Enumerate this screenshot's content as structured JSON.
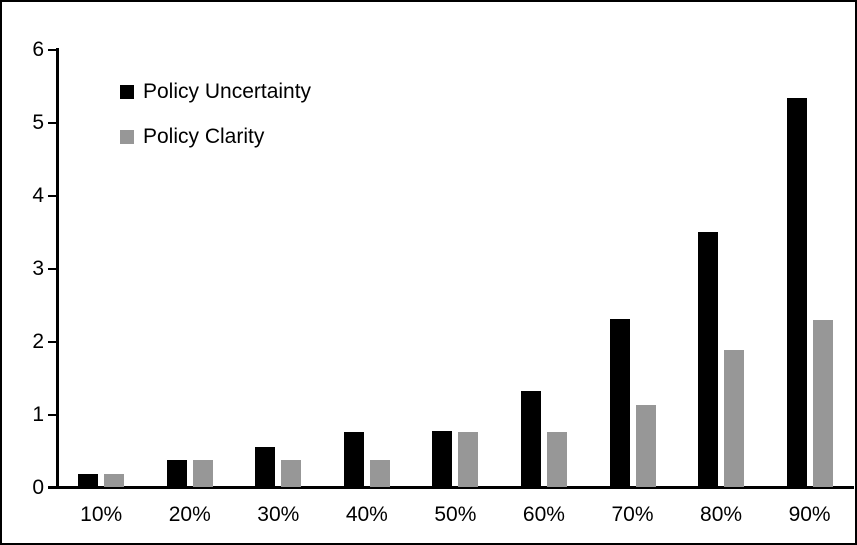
{
  "chart_data": {
    "type": "bar",
    "title": "",
    "xlabel": "",
    "ylabel": "",
    "categories": [
      "10%",
      "20%",
      "30%",
      "40%",
      "50%",
      "60%",
      "70%",
      "80%",
      "90%"
    ],
    "series": [
      {
        "name": "Policy Uncertainty",
        "color": "#000000",
        "values": [
          0.19,
          0.38,
          0.55,
          0.76,
          0.77,
          1.32,
          2.31,
          3.5,
          5.33
        ]
      },
      {
        "name": "Policy Clarity",
        "color": "#979797",
        "values": [
          0.19,
          0.37,
          0.38,
          0.38,
          0.76,
          0.76,
          1.13,
          1.88,
          2.3
        ]
      }
    ],
    "ylim": [
      0,
      6
    ],
    "yticks": [
      0,
      1,
      2,
      3,
      4,
      5,
      6
    ],
    "grid": false,
    "legend_position": "top-left",
    "axis_color": "#000000",
    "background_color": "#ffffff",
    "border_color": "#000000"
  }
}
